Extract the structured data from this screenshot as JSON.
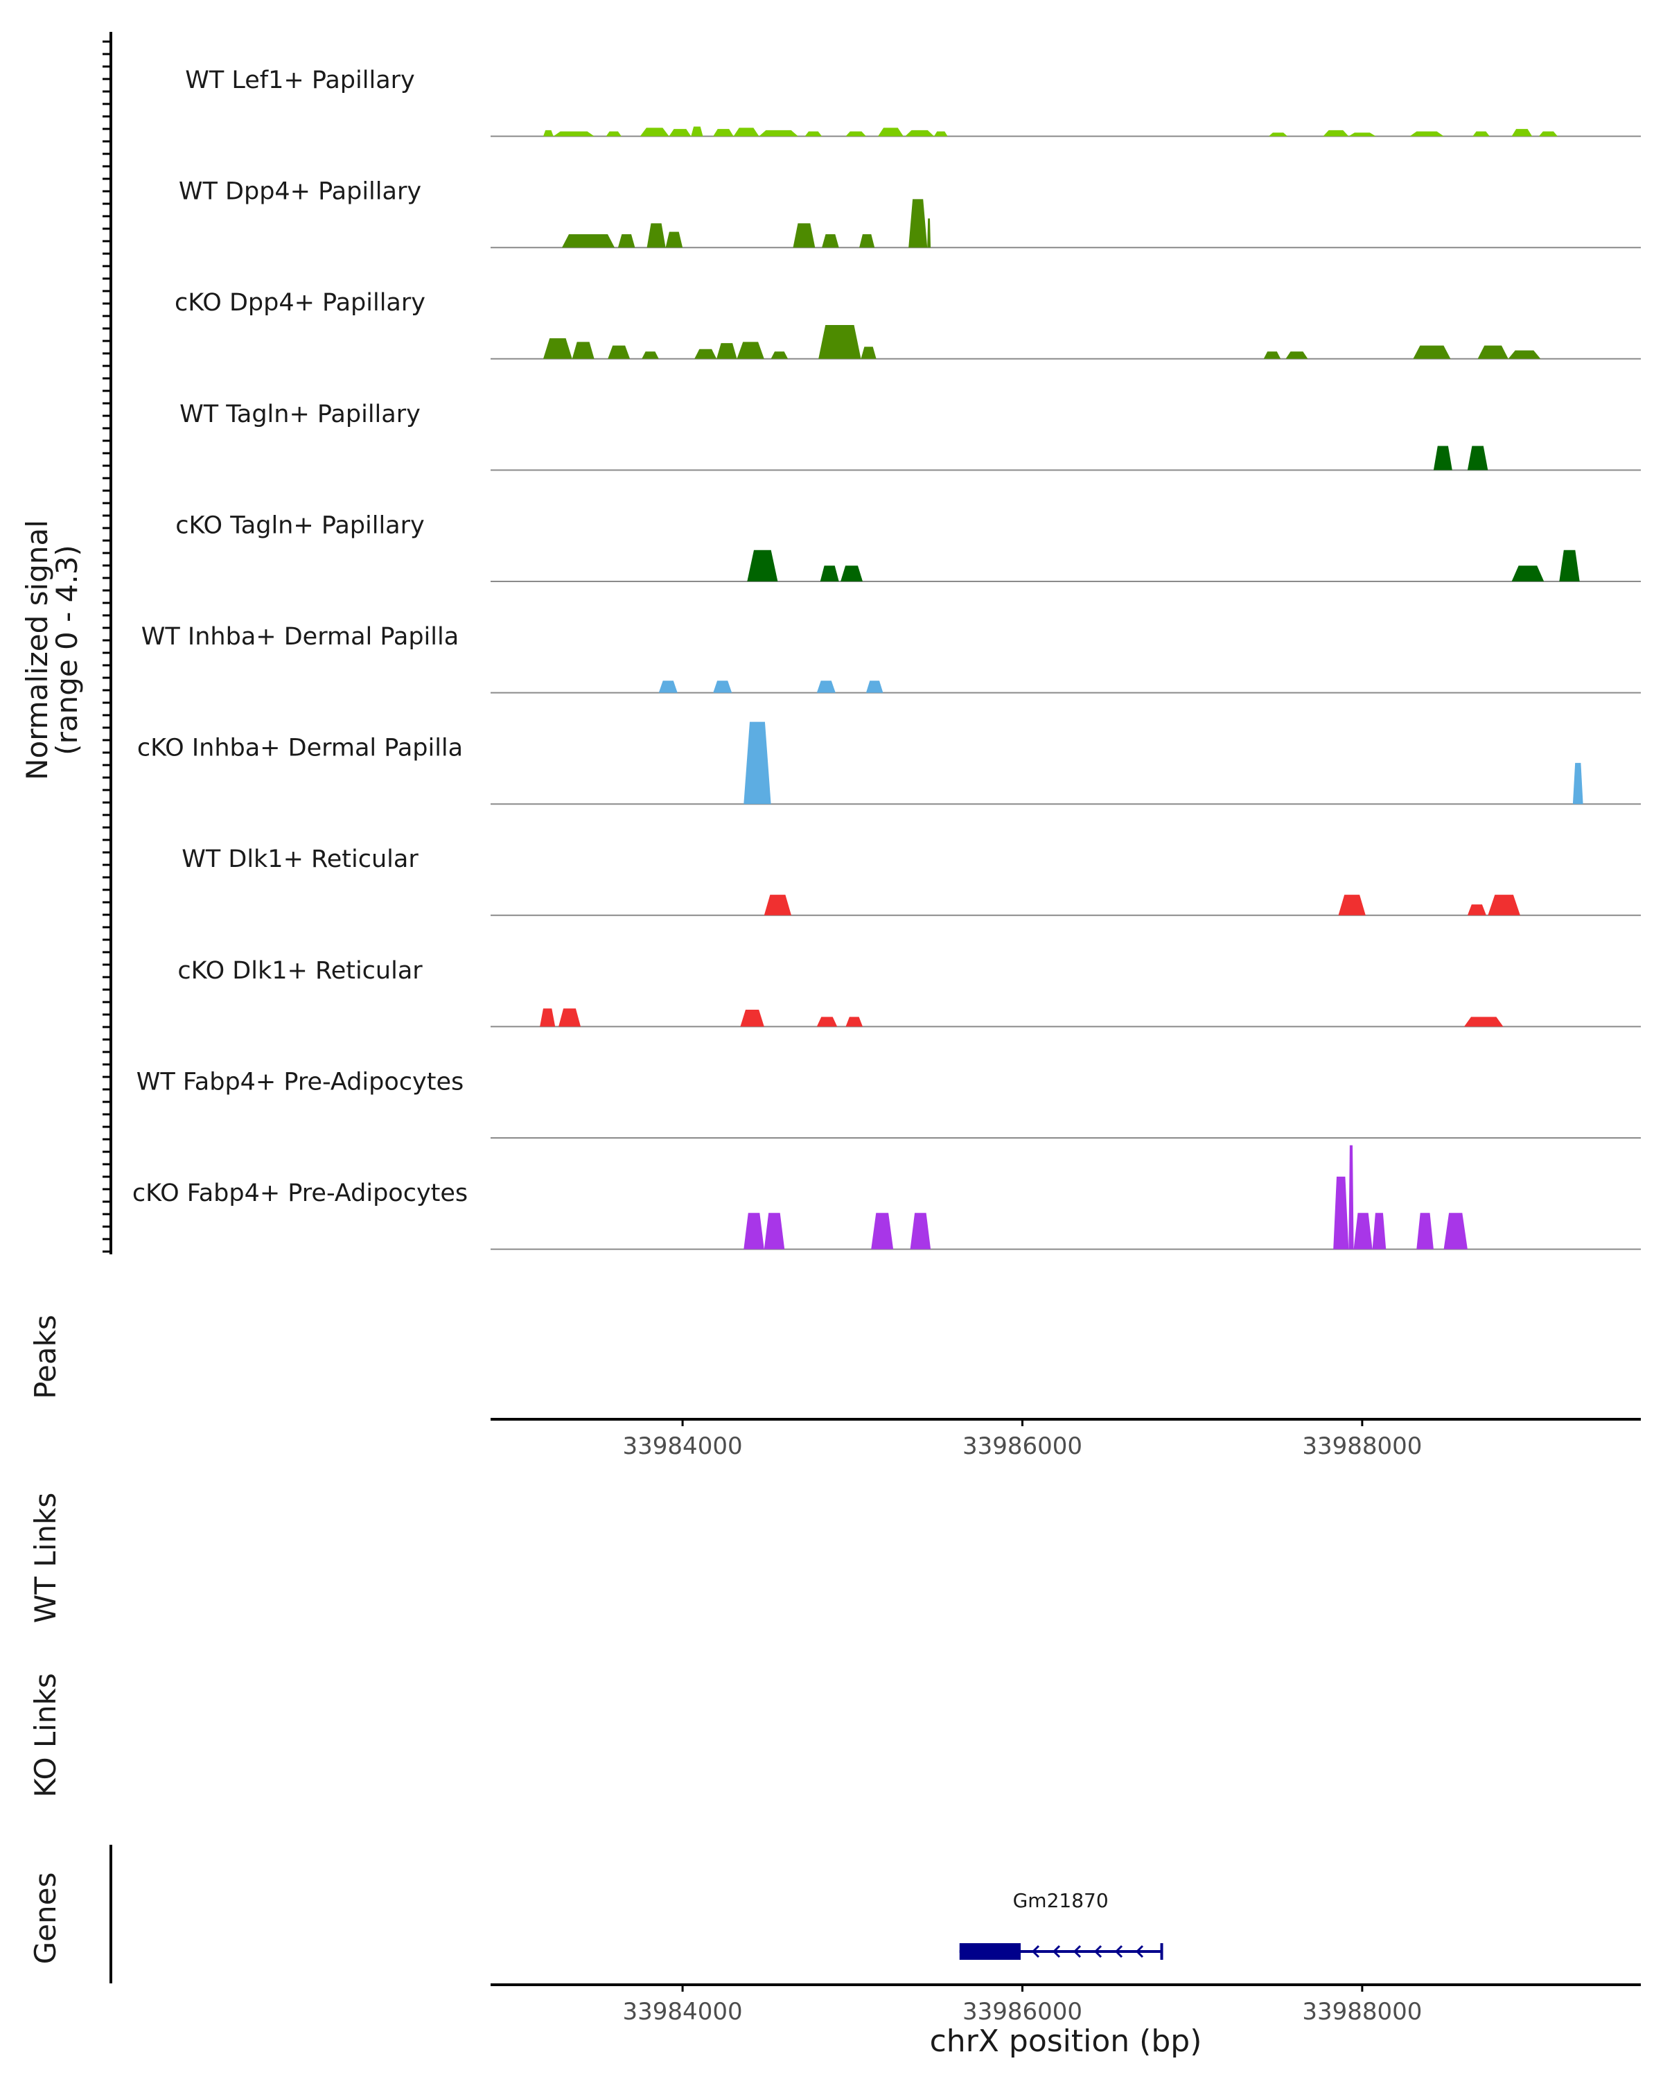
{
  "chart_data": {
    "type": "area",
    "title": "",
    "xlabel": "chrX position (bp)",
    "x_ticks": [
      33984000,
      33986000,
      33988000
    ],
    "x_range": [
      33982870,
      33989640
    ],
    "signal_panel": {
      "ylabel_line1": "Normalized signal",
      "ylabel_line2": "(range 0 - 4.3)",
      "y_range": [
        0,
        4.3
      ],
      "tracks": [
        {
          "name": "WT Lef1+ Papillary",
          "color": "#7CCD00",
          "peaks": [
            [
              33983180,
              33983240,
              0.25
            ],
            [
              33983240,
              33983480,
              0.2
            ],
            [
              33983550,
              33983640,
              0.2
            ],
            [
              33983750,
              33983920,
              0.35
            ],
            [
              33983920,
              33984050,
              0.3
            ],
            [
              33984050,
              33984120,
              0.4
            ],
            [
              33984180,
              33984300,
              0.3
            ],
            [
              33984300,
              33984450,
              0.35
            ],
            [
              33984450,
              33984680,
              0.25
            ],
            [
              33984720,
              33984820,
              0.2
            ],
            [
              33984960,
              33985080,
              0.2
            ],
            [
              33985150,
              33985300,
              0.35
            ],
            [
              33985310,
              33985480,
              0.25
            ],
            [
              33985480,
              33985560,
              0.2
            ],
            [
              33987450,
              33987560,
              0.15
            ],
            [
              33987770,
              33987920,
              0.25
            ],
            [
              33987920,
              33988080,
              0.15
            ],
            [
              33988280,
              33988480,
              0.2
            ],
            [
              33988650,
              33988750,
              0.2
            ],
            [
              33988880,
              33989000,
              0.3
            ],
            [
              33989040,
              33989150,
              0.2
            ]
          ]
        },
        {
          "name": "WT Dpp4+ Papillary",
          "color": "#4D8B00",
          "peaks": [
            [
              33983290,
              33983600,
              0.55
            ],
            [
              33983620,
              33983720,
              0.55
            ],
            [
              33983790,
              33983900,
              1.0
            ],
            [
              33983900,
              33984000,
              0.65
            ],
            [
              33984650,
              33984780,
              1.0
            ],
            [
              33984820,
              33984920,
              0.55
            ],
            [
              33985040,
              33985130,
              0.55
            ],
            [
              33985330,
              33985440,
              2.0
            ],
            [
              33985440,
              33985460,
              1.2
            ]
          ]
        },
        {
          "name": "cKO Dpp4+ Papillary",
          "color": "#4D8B00",
          "peaks": [
            [
              33983180,
              33983350,
              0.85
            ],
            [
              33983350,
              33983480,
              0.7
            ],
            [
              33983560,
              33983690,
              0.55
            ],
            [
              33983760,
              33983860,
              0.3
            ],
            [
              33984070,
              33984200,
              0.4
            ],
            [
              33984200,
              33984320,
              0.65
            ],
            [
              33984320,
              33984480,
              0.7
            ],
            [
              33984520,
              33984620,
              0.3
            ],
            [
              33984800,
              33985050,
              1.4
            ],
            [
              33985050,
              33985140,
              0.5
            ],
            [
              33987420,
              33987520,
              0.3
            ],
            [
              33987550,
              33987680,
              0.3
            ],
            [
              33988300,
              33988520,
              0.55
            ],
            [
              33988680,
              33988860,
              0.55
            ],
            [
              33988860,
              33989050,
              0.35
            ]
          ]
        },
        {
          "name": "WT Tagln+ Papillary",
          "color": "#006400",
          "peaks": [
            [
              33988420,
              33988530,
              1.0
            ],
            [
              33988620,
              33988740,
              1.0
            ]
          ]
        },
        {
          "name": "cKO Tagln+ Papillary",
          "color": "#006400",
          "peaks": [
            [
              33984380,
              33984560,
              1.3
            ],
            [
              33984810,
              33984920,
              0.65
            ],
            [
              33984930,
              33985060,
              0.65
            ],
            [
              33988880,
              33989070,
              0.65
            ],
            [
              33989160,
              33989280,
              1.3
            ]
          ]
        },
        {
          "name": "WT Inhba+ Dermal Papilla",
          "color": "#5DADE2",
          "peaks": [
            [
              33983860,
              33983970,
              0.5
            ],
            [
              33984180,
              33984290,
              0.5
            ],
            [
              33984790,
              33984900,
              0.5
            ],
            [
              33985080,
              33985180,
              0.5
            ]
          ]
        },
        {
          "name": "cKO Inhba+ Dermal Papilla",
          "color": "#5DADE2",
          "peaks": [
            [
              33984360,
              33984520,
              3.4
            ],
            [
              33989240,
              33989300,
              1.7
            ]
          ]
        },
        {
          "name": "WT Dlk1+ Reticular",
          "color": "#F03030",
          "peaks": [
            [
              33984480,
              33984640,
              0.85
            ],
            [
              33987860,
              33988020,
              0.85
            ],
            [
              33988620,
              33988730,
              0.45
            ],
            [
              33988740,
              33988930,
              0.85
            ]
          ]
        },
        {
          "name": "cKO Dlk1+ Reticular",
          "color": "#F03030",
          "peaks": [
            [
              33983160,
              33983250,
              0.75
            ],
            [
              33983270,
              33983400,
              0.75
            ],
            [
              33984340,
              33984480,
              0.7
            ],
            [
              33984790,
              33984910,
              0.4
            ],
            [
              33984960,
              33985060,
              0.4
            ],
            [
              33988600,
              33988830,
              0.4
            ]
          ]
        },
        {
          "name": "WT Fabp4+ Pre-Adipocytes",
          "color": "#A836E8",
          "peaks": []
        },
        {
          "name": "cKO Fabp4+ Pre-Adipocytes",
          "color": "#A836E8",
          "peaks": [
            [
              33984360,
              33984480,
              1.5
            ],
            [
              33984480,
              33984600,
              1.5
            ],
            [
              33985110,
              33985240,
              1.5
            ],
            [
              33985340,
              33985460,
              1.5
            ],
            [
              33987830,
              33987920,
              3.0
            ],
            [
              33987920,
              33987950,
              4.3
            ],
            [
              33987950,
              33988060,
              1.5
            ],
            [
              33988060,
              33988140,
              1.5
            ],
            [
              33988320,
              33988420,
              1.5
            ],
            [
              33988480,
              33988620,
              1.5
            ]
          ]
        }
      ]
    },
    "peaks_panel": {
      "label": "Peaks"
    },
    "links_panels": [
      {
        "label": "WT Links"
      },
      {
        "label": "KO Links"
      }
    ],
    "genes_panel": {
      "label": "Genes",
      "genes": [
        {
          "name": "Gm21870",
          "start": 33985630,
          "end": 33986820,
          "strand": "-",
          "exon_start": 33985630,
          "exon_end": 33985990
        }
      ]
    }
  }
}
